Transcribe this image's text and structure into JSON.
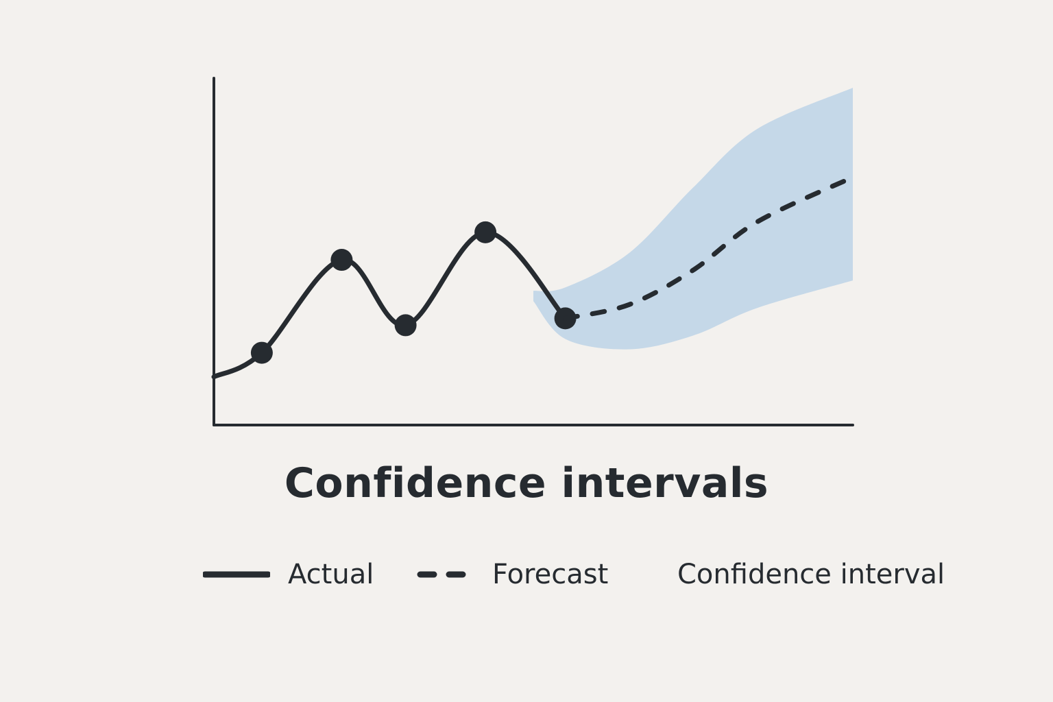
{
  "colors": {
    "background": "#f3f1ee",
    "line": "#262b30",
    "band": "#c5d8e8"
  },
  "chart_data": {
    "type": "line",
    "title": "Confidence intervals",
    "xlabel": "",
    "ylabel": "",
    "xlim": [
      0,
      20
    ],
    "ylim": [
      0,
      10
    ],
    "grid": false,
    "legend_position": "bottom",
    "series": [
      {
        "name": "Actual",
        "style": "solid",
        "x": [
          0,
          1.5,
          4,
          6,
          8.5,
          11
        ],
        "y": [
          1.4,
          2.1,
          4.8,
          2.9,
          5.6,
          3.1
        ],
        "markers": true
      },
      {
        "name": "Forecast",
        "style": "dashed",
        "x": [
          11,
          13,
          15,
          17,
          20
        ],
        "y": [
          3.1,
          3.5,
          4.5,
          5.9,
          7.2
        ]
      }
    ],
    "band": {
      "name": "Confidence interval",
      "x": [
        10,
        11,
        13,
        15,
        17,
        20
      ],
      "upper": [
        3.9,
        4.0,
        5.0,
        6.9,
        8.6,
        9.8
      ],
      "lower": [
        3.6,
        2.5,
        2.2,
        2.6,
        3.4,
        4.2
      ]
    }
  },
  "legend": {
    "actual_label": "Actual",
    "forecast_label": "Forecast",
    "ci_label": "Confidence interval"
  }
}
